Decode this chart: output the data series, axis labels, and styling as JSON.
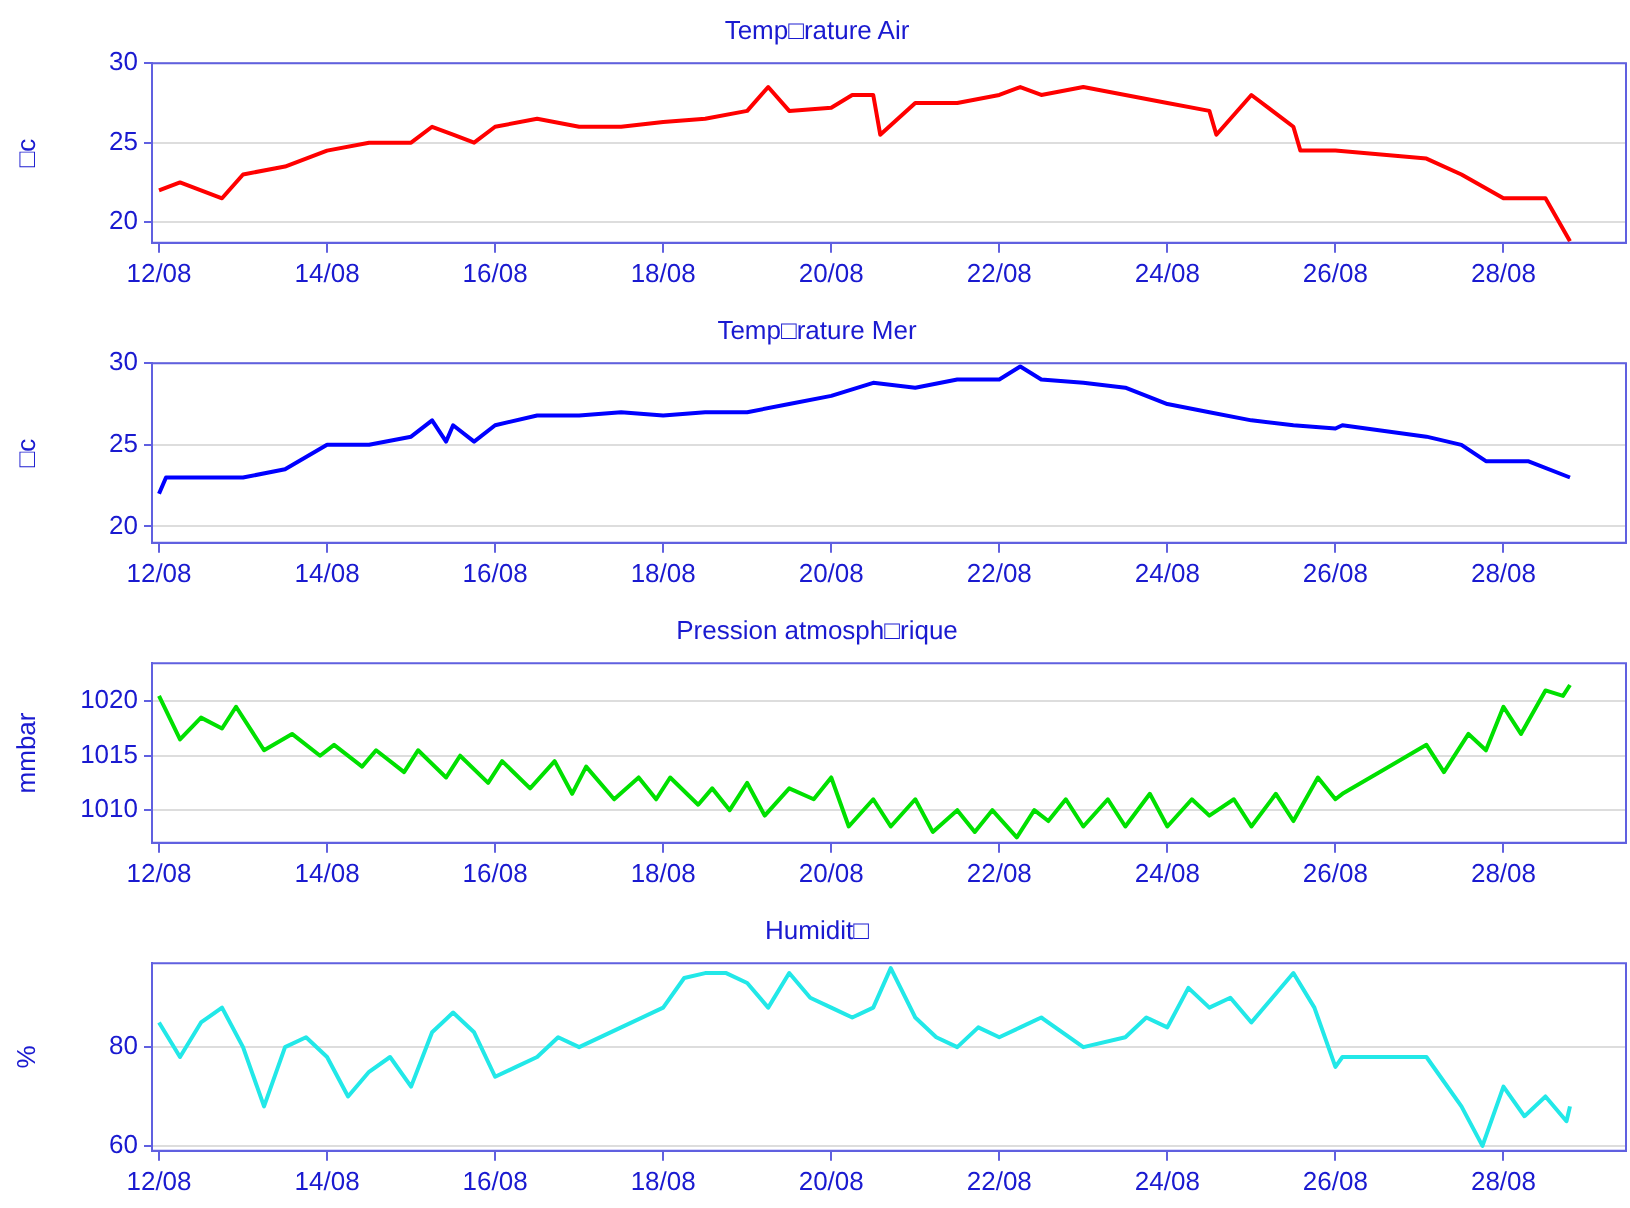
{
  "chart_data": [
    {
      "type": "line",
      "title": "Temp□rature Air",
      "ylabel": "□c",
      "color": "#ff0000",
      "grid": "y",
      "xlim": [
        "--08-11T22:00",
        "--08-29T11:00"
      ],
      "ylim": [
        18.7,
        30
      ],
      "yticks": [
        20,
        25,
        30
      ],
      "xticks": [
        {
          "value": "--08-12",
          "label": "12/08"
        },
        {
          "value": "--08-14",
          "label": "14/08"
        },
        {
          "value": "--08-16",
          "label": "16/08"
        },
        {
          "value": "--08-18",
          "label": "18/08"
        },
        {
          "value": "--08-20",
          "label": "20/08"
        },
        {
          "value": "--08-22",
          "label": "22/08"
        },
        {
          "value": "--08-24",
          "label": "24/08"
        },
        {
          "value": "--08-26",
          "label": "26/08"
        },
        {
          "value": "--08-28",
          "label": "28/08"
        }
      ],
      "x": [
        "--08-12T00:00",
        "--08-12T06:00",
        "--08-12T12:00",
        "--08-12T18:00",
        "--08-13T00:00",
        "--08-13T12:00",
        "--08-14T00:00",
        "--08-14T12:00",
        "--08-15T00:00",
        "--08-15T06:00",
        "--08-15T12:00",
        "--08-15T18:00",
        "--08-16T00:00",
        "--08-16T12:00",
        "--08-17T00:00",
        "--08-17T12:00",
        "--08-18T00:00",
        "--08-18T12:00",
        "--08-19T00:00",
        "--08-19T06:00",
        "--08-19T12:00",
        "--08-20T00:00",
        "--08-20T06:00",
        "--08-20T12:00",
        "--08-20T14:00",
        "--08-21T00:00",
        "--08-21T12:00",
        "--08-22T00:00",
        "--08-22T06:00",
        "--08-22T12:00",
        "--08-23T00:00",
        "--08-23T12:00",
        "--08-24T00:00",
        "--08-24T12:00",
        "--08-24T14:00",
        "--08-25T00:00",
        "--08-25T06:00",
        "--08-25T12:00",
        "--08-25T14:00",
        "--08-26T00:00",
        "--08-27T02:00",
        "--08-27T12:00",
        "--08-28T00:00",
        "--08-28T12:00",
        "--08-28T19:00"
      ],
      "values": [
        22,
        22.5,
        22,
        21.5,
        23,
        23.5,
        24.5,
        25,
        25,
        26,
        25.5,
        25,
        26,
        26.5,
        26,
        26,
        26.3,
        26.5,
        27,
        28.5,
        27,
        27.2,
        28,
        28,
        25.5,
        27.5,
        27.5,
        28,
        28.5,
        28,
        28.5,
        28,
        27.5,
        27,
        25.5,
        28,
        27,
        26,
        24.5,
        24.5,
        24,
        23,
        21.5,
        21.5,
        18.8
      ]
    },
    {
      "type": "line",
      "title": "Temp□rature Mer",
      "ylabel": "□c",
      "color": "#0000ff",
      "grid": "y",
      "xlim": [
        "--08-11T22:00",
        "--08-29T11:00"
      ],
      "ylim": [
        19,
        30
      ],
      "yticks": [
        20,
        25,
        30
      ],
      "xticks": [
        {
          "value": "--08-12",
          "label": "12/08"
        },
        {
          "value": "--08-14",
          "label": "14/08"
        },
        {
          "value": "--08-16",
          "label": "16/08"
        },
        {
          "value": "--08-18",
          "label": "18/08"
        },
        {
          "value": "--08-20",
          "label": "20/08"
        },
        {
          "value": "--08-22",
          "label": "22/08"
        },
        {
          "value": "--08-24",
          "label": "24/08"
        },
        {
          "value": "--08-26",
          "label": "26/08"
        },
        {
          "value": "--08-28",
          "label": "28/08"
        }
      ],
      "x": [
        "--08-12T00:00",
        "--08-12T02:00",
        "--08-12T12:00",
        "--08-13T00:00",
        "--08-13T12:00",
        "--08-14T00:00",
        "--08-14T12:00",
        "--08-15T00:00",
        "--08-15T06:00",
        "--08-15T10:00",
        "--08-15T12:00",
        "--08-15T18:00",
        "--08-16T00:00",
        "--08-16T12:00",
        "--08-17T00:00",
        "--08-17T12:00",
        "--08-18T00:00",
        "--08-18T12:00",
        "--08-19T00:00",
        "--08-19T12:00",
        "--08-20T00:00",
        "--08-20T12:00",
        "--08-21T00:00",
        "--08-21T12:00",
        "--08-22T00:00",
        "--08-22T06:00",
        "--08-22T12:00",
        "--08-23T00:00",
        "--08-23T12:00",
        "--08-24T00:00",
        "--08-24T12:00",
        "--08-25T00:00",
        "--08-25T12:00",
        "--08-26T00:00",
        "--08-26T02:00",
        "--08-27T02:00",
        "--08-27T12:00",
        "--08-27T19:00",
        "--08-28T07:00",
        "--08-28T19:00"
      ],
      "values": [
        22,
        23,
        23,
        23,
        23.5,
        25,
        25,
        25.5,
        26.5,
        25.2,
        26.2,
        25.2,
        26.2,
        26.8,
        26.8,
        27,
        26.8,
        27,
        27,
        27.5,
        28,
        28.8,
        28.5,
        29,
        29,
        29.8,
        29,
        28.8,
        28.5,
        27.5,
        27,
        26.5,
        26.2,
        26,
        26.2,
        25.5,
        25,
        24,
        24,
        23
      ]
    },
    {
      "type": "line",
      "title": "Pression atmosph□rique",
      "ylabel": "mmbar",
      "color": "#00e000",
      "grid": "y",
      "xlim": [
        "--08-11T22:00",
        "--08-29T11:00"
      ],
      "ylim": [
        1007,
        1023.5
      ],
      "yticks": [
        1010,
        1015,
        1020
      ],
      "xticks": [
        {
          "value": "--08-12",
          "label": "12/08"
        },
        {
          "value": "--08-14",
          "label": "14/08"
        },
        {
          "value": "--08-16",
          "label": "16/08"
        },
        {
          "value": "--08-18",
          "label": "18/08"
        },
        {
          "value": "--08-20",
          "label": "20/08"
        },
        {
          "value": "--08-22",
          "label": "22/08"
        },
        {
          "value": "--08-24",
          "label": "24/08"
        },
        {
          "value": "--08-26",
          "label": "26/08"
        },
        {
          "value": "--08-28",
          "label": "28/08"
        }
      ],
      "x": [
        "--08-12T00:00",
        "--08-12T06:00",
        "--08-12T12:00",
        "--08-12T18:00",
        "--08-12T22:00",
        "--08-13T06:00",
        "--08-13T14:00",
        "--08-13T22:00",
        "--08-14T02:00",
        "--08-14T10:00",
        "--08-14T14:00",
        "--08-14T22:00",
        "--08-15T02:00",
        "--08-15T10:00",
        "--08-15T14:00",
        "--08-15T22:00",
        "--08-16T02:00",
        "--08-16T10:00",
        "--08-16T17:00",
        "--08-16T22:00",
        "--08-17T02:00",
        "--08-17T10:00",
        "--08-17T17:00",
        "--08-17T22:00",
        "--08-18T02:00",
        "--08-18T10:00",
        "--08-18T14:00",
        "--08-18T19:00",
        "--08-19T00:00",
        "--08-19T05:00",
        "--08-19T12:00",
        "--08-19T19:00",
        "--08-20T00:00",
        "--08-20T05:00",
        "--08-20T12:00",
        "--08-20T17:00",
        "--08-21T00:00",
        "--08-21T05:00",
        "--08-21T12:00",
        "--08-21T17:00",
        "--08-21T22:00",
        "--08-22T05:00",
        "--08-22T10:00",
        "--08-22T14:00",
        "--08-22T19:00",
        "--08-23T00:00",
        "--08-23T07:00",
        "--08-23T12:00",
        "--08-23T19:00",
        "--08-24T00:00",
        "--08-24T07:00",
        "--08-24T12:00",
        "--08-24T19:00",
        "--08-25T00:00",
        "--08-25T07:00",
        "--08-25T12:00",
        "--08-25T19:00",
        "--08-26T00:00",
        "--08-26T02:00",
        "--08-27T02:00",
        "--08-27T07:00",
        "--08-27T14:00",
        "--08-27T19:00",
        "--08-28T00:00",
        "--08-28T05:00",
        "--08-28T12:00",
        "--08-28T17:00",
        "--08-28T19:00"
      ],
      "values": [
        1020.5,
        1016.5,
        1018.5,
        1017.5,
        1019.5,
        1015.5,
        1017,
        1015,
        1016,
        1014,
        1015.5,
        1013.5,
        1015.5,
        1013,
        1015,
        1012.5,
        1014.5,
        1012,
        1014.5,
        1011.5,
        1014,
        1011,
        1013,
        1011,
        1013,
        1010.5,
        1012,
        1010,
        1012.5,
        1009.5,
        1012,
        1011,
        1013,
        1008.5,
        1011,
        1008.5,
        1011,
        1008,
        1010,
        1008,
        1010,
        1007.5,
        1010,
        1009,
        1011,
        1008.5,
        1011,
        1008.5,
        1011.5,
        1008.5,
        1011,
        1009.5,
        1011,
        1008.5,
        1011.5,
        1009,
        1013,
        1011,
        1011.5,
        1016,
        1013.5,
        1017,
        1015.5,
        1019.5,
        1017,
        1021,
        1020.5,
        1021.5
      ]
    },
    {
      "type": "line",
      "title": "Humidit□",
      "ylabel": "%",
      "color": "#22e8e8",
      "grid": "y",
      "xlim": [
        "--08-11T22:00",
        "--08-29T11:00"
      ],
      "ylim": [
        59,
        97
      ],
      "yticks": [
        60,
        80
      ],
      "xticks": [
        {
          "value": "--08-12",
          "label": "12/08"
        },
        {
          "value": "--08-14",
          "label": "14/08"
        },
        {
          "value": "--08-16",
          "label": "16/08"
        },
        {
          "value": "--08-18",
          "label": "18/08"
        },
        {
          "value": "--08-20",
          "label": "20/08"
        },
        {
          "value": "--08-22",
          "label": "22/08"
        },
        {
          "value": "--08-24",
          "label": "24/08"
        },
        {
          "value": "--08-26",
          "label": "26/08"
        },
        {
          "value": "--08-28",
          "label": "28/08"
        }
      ],
      "x": [
        "--08-12T00:00",
        "--08-12T06:00",
        "--08-12T12:00",
        "--08-12T18:00",
        "--08-13T00:00",
        "--08-13T06:00",
        "--08-13T12:00",
        "--08-13T18:00",
        "--08-14T00:00",
        "--08-14T06:00",
        "--08-14T12:00",
        "--08-14T18:00",
        "--08-15T00:00",
        "--08-15T06:00",
        "--08-15T12:00",
        "--08-15T18:00",
        "--08-16T00:00",
        "--08-16T06:00",
        "--08-16T12:00",
        "--08-16T18:00",
        "--08-17T00:00",
        "--08-17T12:00",
        "--08-18T00:00",
        "--08-18T06:00",
        "--08-18T12:00",
        "--08-18T18:00",
        "--08-19T00:00",
        "--08-19T06:00",
        "--08-19T12:00",
        "--08-19T18:00",
        "--08-20T00:00",
        "--08-20T06:00",
        "--08-20T12:00",
        "--08-20T17:00",
        "--08-21T00:00",
        "--08-21T06:00",
        "--08-21T12:00",
        "--08-21T18:00",
        "--08-22T00:00",
        "--08-22T06:00",
        "--08-22T12:00",
        "--08-23T00:00",
        "--08-23T12:00",
        "--08-23T18:00",
        "--08-24T00:00",
        "--08-24T06:00",
        "--08-24T12:00",
        "--08-24T18:00",
        "--08-25T00:00",
        "--08-25T06:00",
        "--08-25T12:00",
        "--08-25T18:00",
        "--08-26T00:00",
        "--08-26T02:00",
        "--08-27T02:00",
        "--08-27T06:00",
        "--08-27T12:00",
        "--08-27T18:00",
        "--08-28T00:00",
        "--08-28T06:00",
        "--08-28T12:00",
        "--08-28T18:00",
        "--08-28T19:00"
      ],
      "values": [
        85,
        78,
        85,
        88,
        80,
        68,
        80,
        82,
        78,
        70,
        75,
        78,
        72,
        83,
        87,
        83,
        74,
        76,
        78,
        82,
        80,
        84,
        88,
        94,
        95,
        95,
        93,
        88,
        95,
        90,
        88,
        86,
        88,
        96,
        86,
        82,
        80,
        84,
        82,
        84,
        86,
        80,
        82,
        86,
        84,
        92,
        88,
        90,
        85,
        90,
        95,
        88,
        76,
        78,
        78,
        74,
        68,
        60,
        72,
        66,
        70,
        65,
        68
      ]
    }
  ]
}
